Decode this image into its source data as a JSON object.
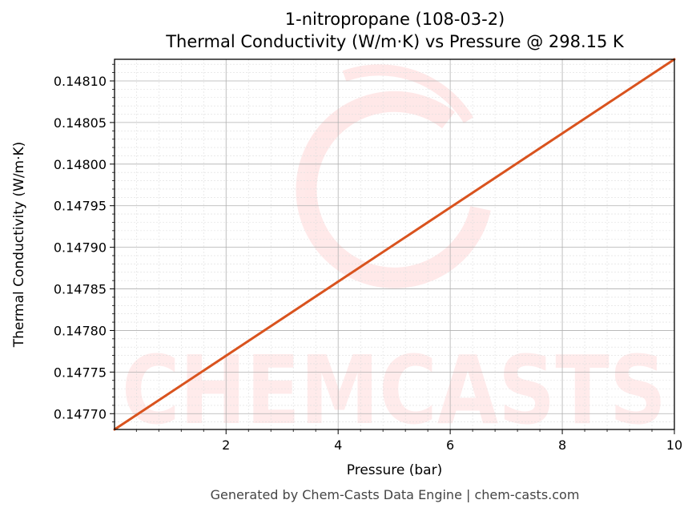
{
  "chart_data": {
    "type": "line",
    "title": "1-nitropropane (108-03-2)",
    "subtitle": "Thermal Conductivity (W/m·K) vs Pressure @ 298.15 K",
    "xlabel": "Pressure (bar)",
    "ylabel": "Thermal Conductivity (W/m·K)",
    "xlim": [
      0.01,
      10
    ],
    "ylim": [
      0.147681,
      0.148126
    ],
    "xticks": [
      2,
      4,
      6,
      8,
      10
    ],
    "xtick_labels": [
      "2",
      "4",
      "6",
      "8",
      "10"
    ],
    "yticks": [
      0.1477,
      0.14775,
      0.1478,
      0.14785,
      0.1479,
      0.14795,
      0.148,
      0.14805,
      0.1481
    ],
    "ytick_labels": [
      "0.14770",
      "0.14775",
      "0.14780",
      "0.14785",
      "0.14790",
      "0.14795",
      "0.14800",
      "0.14805",
      "0.14810"
    ],
    "grid": true,
    "series": [
      {
        "x": [
          0.01,
          2,
          4,
          6,
          8,
          10
        ],
        "y": [
          0.147681,
          0.1477696,
          0.1478587,
          0.1479478,
          0.1480369,
          0.148126
        ],
        "color": "#d9531e"
      }
    ],
    "watermark": "CHEMCASTS",
    "footer": "Generated by Chem-Casts Data Engine | chem-casts.com"
  }
}
